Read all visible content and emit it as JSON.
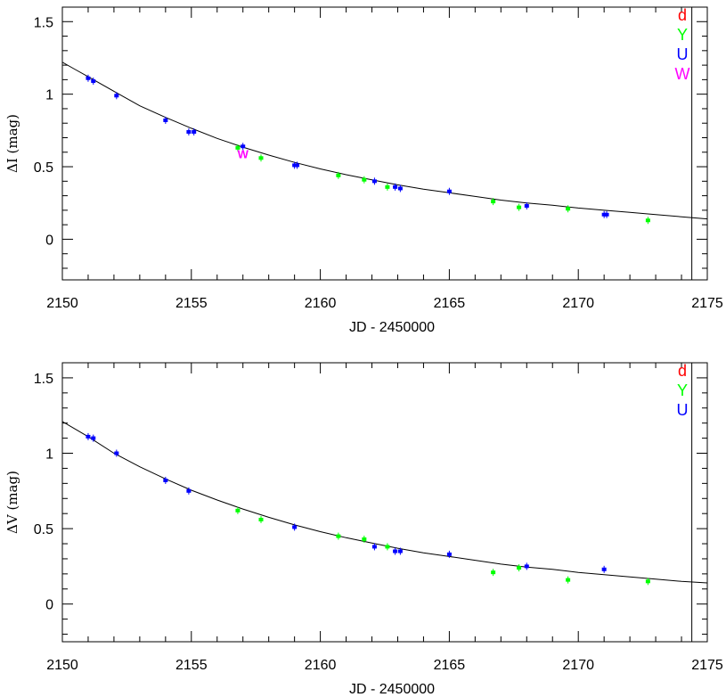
{
  "chart_data": [
    {
      "type": "scatter",
      "ylabel": "ΔI (mag)",
      "xlabel": "JD - 2450000",
      "xlim": [
        2150,
        2175
      ],
      "ylim": [
        -0.28,
        1.6
      ],
      "xticks": [
        2150,
        2155,
        2160,
        2165,
        2170,
        2175
      ],
      "yticks": [
        0,
        0.5,
        1,
        1.5
      ],
      "x_tick_labels": [
        "2150",
        "2155",
        "2160",
        "2165",
        "2170",
        "2175"
      ],
      "y_tick_labels": [
        "0",
        "0.5",
        "1",
        "1.5"
      ],
      "vertical_line_x": 2174.4,
      "grid": false,
      "legend_position": "top-right",
      "legend": [
        {
          "name": "d",
          "color": "#ff0000"
        },
        {
          "name": "Y",
          "color": "#00ff00"
        },
        {
          "name": "U",
          "color": "#0000ff"
        },
        {
          "name": "W",
          "color": "#ff00ff"
        }
      ],
      "series": [
        {
          "name": "U",
          "color": "#0000ff",
          "x": [
            2151.0,
            2151.2,
            2152.1,
            2154.0,
            2154.9,
            2155.1,
            2157.0,
            2159.0,
            2159.1,
            2162.1,
            2162.9,
            2163.1,
            2165.0,
            2168.0,
            2171.0,
            2171.1
          ],
          "y": [
            1.11,
            1.09,
            0.99,
            0.82,
            0.74,
            0.74,
            0.64,
            0.51,
            0.51,
            0.4,
            0.36,
            0.35,
            0.33,
            0.23,
            0.17,
            0.17
          ]
        },
        {
          "name": "Y",
          "color": "#00ff00",
          "x": [
            2156.8,
            2157.7,
            2160.7,
            2161.7,
            2162.6,
            2166.7,
            2167.7,
            2169.6,
            2172.7
          ],
          "y": [
            0.63,
            0.56,
            0.44,
            0.41,
            0.36,
            0.26,
            0.22,
            0.21,
            0.13
          ]
        },
        {
          "name": "W",
          "color": "#ff00ff",
          "x": [
            2157.0
          ],
          "y": [
            0.59
          ]
        }
      ],
      "curve": {
        "x": [
          2149.9,
          2150.5,
          2151,
          2152,
          2153,
          2154,
          2155,
          2156,
          2157,
          2158,
          2159,
          2160,
          2161,
          2162,
          2163,
          2164,
          2165,
          2166,
          2167,
          2168,
          2169,
          2170,
          2171,
          2172,
          2173,
          2174,
          2175
        ],
        "y": [
          1.23,
          1.17,
          1.12,
          1.02,
          0.92,
          0.84,
          0.765,
          0.695,
          0.635,
          0.58,
          0.53,
          0.485,
          0.445,
          0.41,
          0.375,
          0.345,
          0.32,
          0.295,
          0.27,
          0.25,
          0.235,
          0.215,
          0.2,
          0.185,
          0.17,
          0.155,
          0.14
        ]
      }
    },
    {
      "type": "scatter",
      "ylabel": "ΔV (mag)",
      "xlabel": "JD - 2450000",
      "xlim": [
        2150,
        2175
      ],
      "ylim": [
        -0.25,
        1.6
      ],
      "xticks": [
        2150,
        2155,
        2160,
        2165,
        2170,
        2175
      ],
      "yticks": [
        0,
        0.5,
        1,
        1.5
      ],
      "x_tick_labels": [
        "2150",
        "2155",
        "2160",
        "2165",
        "2170",
        "2175"
      ],
      "y_tick_labels": [
        "0",
        "0.5",
        "1",
        "1.5"
      ],
      "vertical_line_x": 2174.4,
      "grid": false,
      "legend_position": "top-right",
      "legend": [
        {
          "name": "d",
          "color": "#ff0000"
        },
        {
          "name": "Y",
          "color": "#00ff00"
        },
        {
          "name": "U",
          "color": "#0000ff"
        }
      ],
      "series": [
        {
          "name": "U",
          "color": "#0000ff",
          "x": [
            2151.0,
            2151.2,
            2152.1,
            2154.0,
            2154.9,
            2159.0,
            2162.1,
            2162.9,
            2163.1,
            2165.0,
            2168.0,
            2171.0
          ],
          "y": [
            1.11,
            1.1,
            1.0,
            0.82,
            0.75,
            0.51,
            0.38,
            0.35,
            0.35,
            0.33,
            0.25,
            0.23
          ]
        },
        {
          "name": "Y",
          "color": "#00ff00",
          "x": [
            2156.8,
            2157.7,
            2160.7,
            2161.7,
            2162.6,
            2166.7,
            2167.7,
            2169.6,
            2172.7
          ],
          "y": [
            0.62,
            0.56,
            0.45,
            0.43,
            0.38,
            0.21,
            0.24,
            0.16,
            0.15
          ]
        }
      ],
      "curve": {
        "x": [
          2149.9,
          2150.5,
          2151,
          2152,
          2153,
          2154,
          2155,
          2156,
          2157,
          2158,
          2159,
          2160,
          2161,
          2162,
          2163,
          2164,
          2165,
          2166,
          2167,
          2168,
          2169,
          2170,
          2171,
          2172,
          2173,
          2174,
          2175
        ],
        "y": [
          1.22,
          1.16,
          1.11,
          1.0,
          0.91,
          0.83,
          0.755,
          0.69,
          0.63,
          0.575,
          0.525,
          0.48,
          0.44,
          0.405,
          0.37,
          0.34,
          0.315,
          0.29,
          0.265,
          0.245,
          0.23,
          0.21,
          0.195,
          0.18,
          0.165,
          0.15,
          0.14
        ]
      }
    }
  ]
}
